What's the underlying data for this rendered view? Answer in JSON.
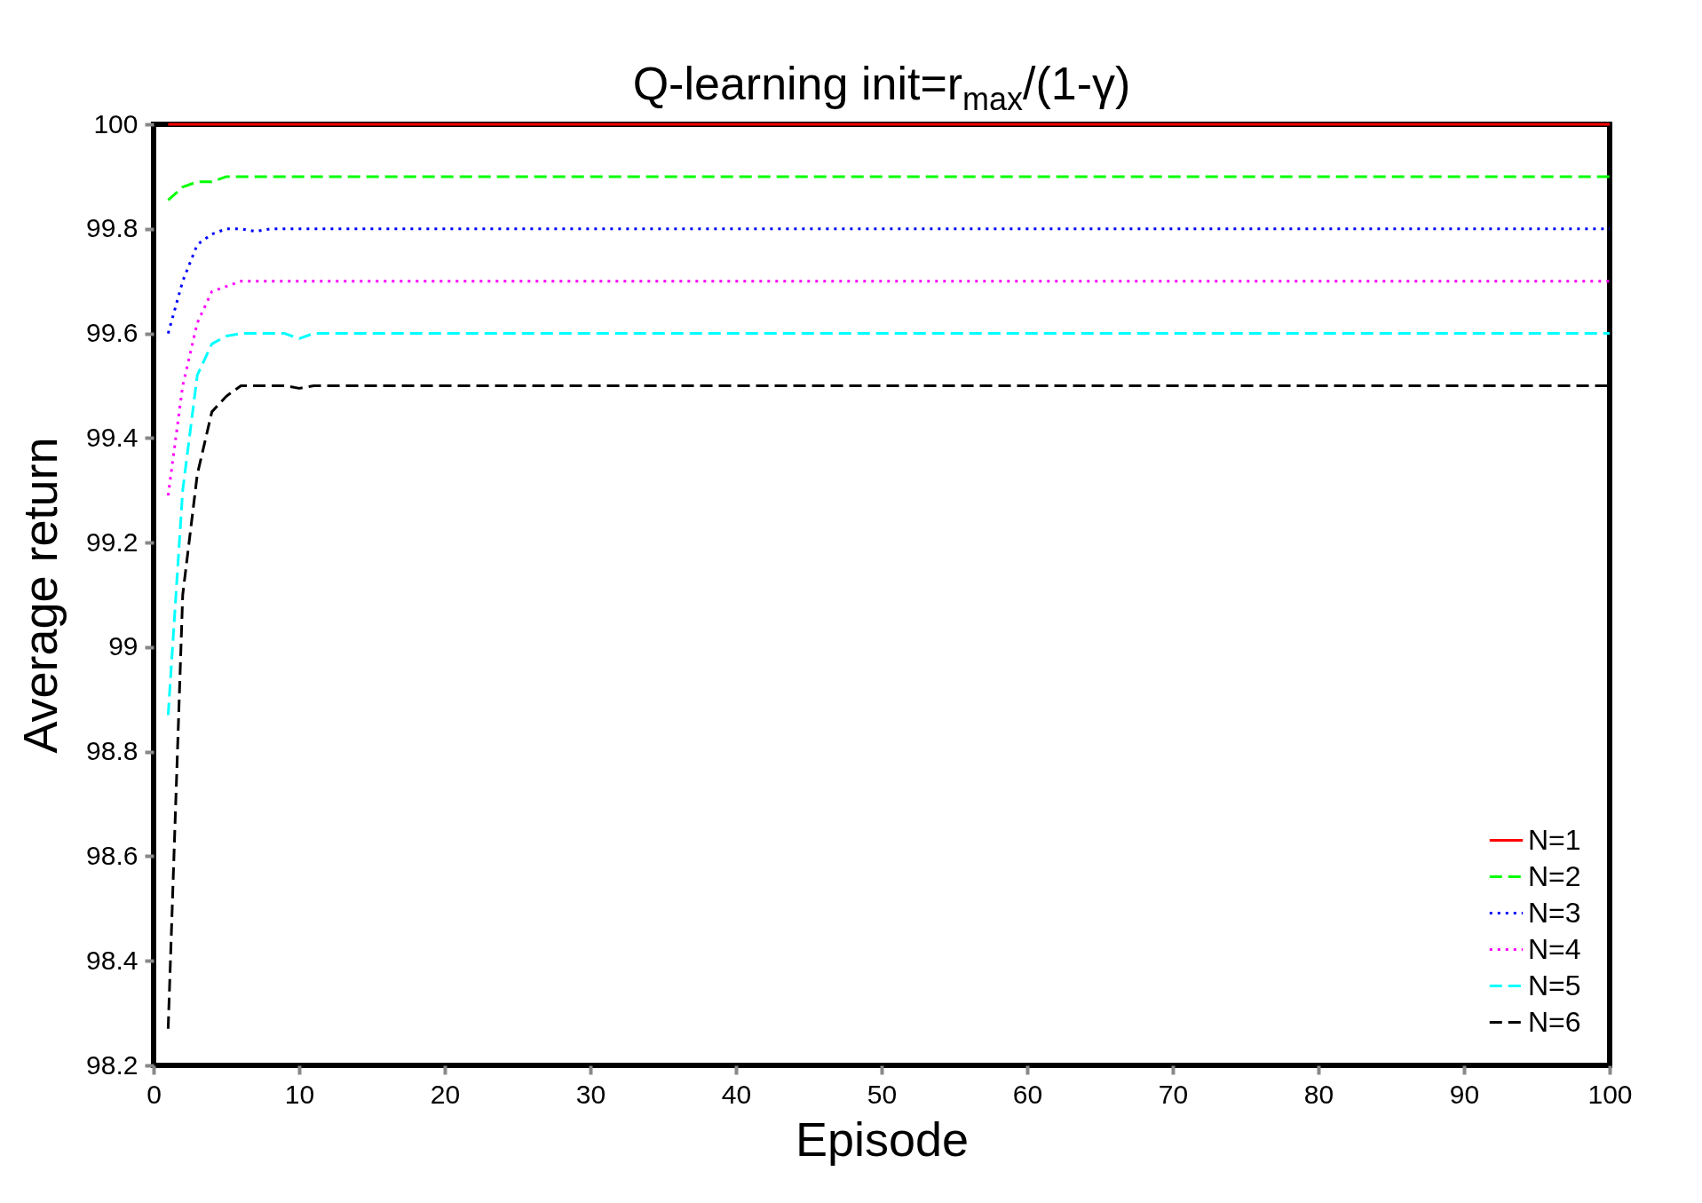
{
  "chart_data": {
    "type": "line",
    "title": "Q-learning init=r$_{max}$/(1-γ)",
    "xlabel": "Episode",
    "ylabel": "Average return",
    "x": [
      1,
      2,
      3,
      4,
      5,
      6,
      7,
      8,
      9,
      10,
      11,
      100
    ],
    "series": [
      {
        "name": "N=1",
        "color": "#ff0000",
        "line_style": "solid",
        "values": [
          100,
          100,
          100,
          100,
          100,
          100,
          100,
          100,
          100,
          100,
          100,
          100
        ]
      },
      {
        "name": "N=2",
        "color": "#00ff00",
        "line_style": "dashed",
        "values": [
          99.855,
          99.88,
          99.89,
          99.89,
          99.9,
          99.9,
          99.9,
          99.9,
          99.9,
          99.9,
          99.9,
          99.9
        ]
      },
      {
        "name": "N=3",
        "color": "#0000ff",
        "line_style": "dotted",
        "values": [
          99.6,
          99.7,
          99.77,
          99.79,
          99.8,
          99.8,
          99.795,
          99.8,
          99.8,
          99.8,
          99.8,
          99.8
        ]
      },
      {
        "name": "N=4",
        "color": "#ff00ff",
        "line_style": "dotted",
        "values": [
          99.29,
          99.5,
          99.62,
          99.68,
          99.69,
          99.7,
          99.7,
          99.7,
          99.7,
          99.7,
          99.7,
          99.7
        ]
      },
      {
        "name": "N=5",
        "color": "#00ffff",
        "line_style": "dashed",
        "values": [
          98.87,
          99.3,
          99.52,
          99.58,
          99.595,
          99.6,
          99.6,
          99.6,
          99.6,
          99.59,
          99.6,
          99.6
        ]
      },
      {
        "name": "N=6",
        "color": "#000000",
        "line_style": "dashed",
        "values": [
          98.27,
          99.1,
          99.33,
          99.45,
          99.48,
          99.5,
          99.5,
          99.5,
          99.5,
          99.495,
          99.5,
          99.5
        ]
      }
    ],
    "xlim": [
      0,
      100
    ],
    "xticks": [
      0,
      10,
      20,
      30,
      40,
      50,
      60,
      70,
      80,
      90,
      100
    ],
    "ylim": [
      98.2,
      100
    ],
    "yticks": [
      98.2,
      98.4,
      98.6,
      98.8,
      99,
      99.2,
      99.4,
      99.6,
      99.8,
      100
    ],
    "grid": false,
    "legend": "bottom right",
    "marker": "none"
  }
}
